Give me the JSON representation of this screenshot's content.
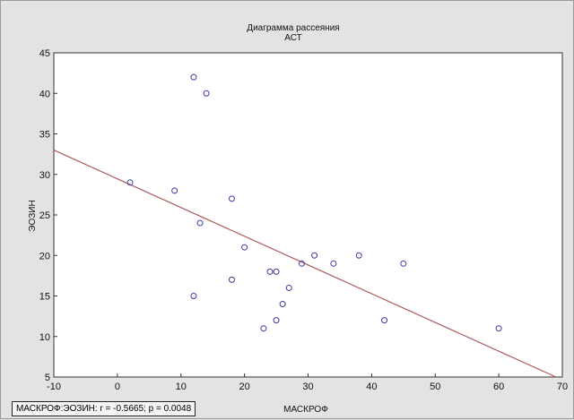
{
  "chart_data": {
    "type": "scatter",
    "title": "Диаграмма рассеяния",
    "subtitle": "АСТ",
    "xlabel": "МАСКРОФ",
    "ylabel": "ЭОЗИН",
    "xlim": [
      -10,
      70
    ],
    "ylim": [
      5,
      45
    ],
    "x_ticks": [
      -10,
      0,
      10,
      20,
      30,
      40,
      50,
      60,
      70
    ],
    "y_ticks": [
      5,
      10,
      15,
      20,
      25,
      30,
      35,
      40,
      45
    ],
    "grid": false,
    "points": [
      {
        "x": 2,
        "y": 29
      },
      {
        "x": 9,
        "y": 28
      },
      {
        "x": 12,
        "y": 42
      },
      {
        "x": 14,
        "y": 40
      },
      {
        "x": 13,
        "y": 24
      },
      {
        "x": 12,
        "y": 15
      },
      {
        "x": 18,
        "y": 27
      },
      {
        "x": 18,
        "y": 17
      },
      {
        "x": 20,
        "y": 21
      },
      {
        "x": 24,
        "y": 18
      },
      {
        "x": 25,
        "y": 18
      },
      {
        "x": 26,
        "y": 14
      },
      {
        "x": 27,
        "y": 16
      },
      {
        "x": 25,
        "y": 12
      },
      {
        "x": 23,
        "y": 11
      },
      {
        "x": 29,
        "y": 19
      },
      {
        "x": 31,
        "y": 20
      },
      {
        "x": 34,
        "y": 19
      },
      {
        "x": 38,
        "y": 20
      },
      {
        "x": 45,
        "y": 19
      },
      {
        "x": 42,
        "y": 12
      },
      {
        "x": 60,
        "y": 11
      }
    ],
    "regression_line": {
      "x": [
        -10,
        69
      ],
      "y": [
        33,
        5
      ]
    },
    "annotation": "МАСКРОФ:ЭОЗИН:   r = -0.5665; p = 0.0048",
    "colors": {
      "point": "#3a3aa0",
      "line": "#b05a5a",
      "plot_bg": "#ffffff",
      "figure_bg": "#e3e3e3"
    }
  }
}
